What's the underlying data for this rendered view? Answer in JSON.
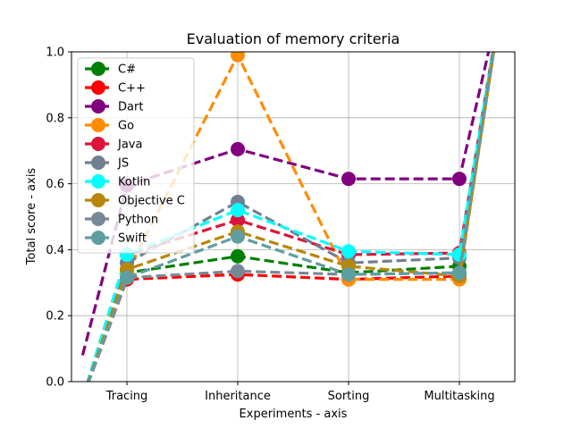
{
  "chart_data": {
    "type": "line",
    "title": "Evaluation of memory criteria",
    "xlabel": "Experiments - axis",
    "ylabel": "Total score - axis",
    "categories": [
      "Tracing",
      "Inheritance",
      "Sorting",
      "Multitasking"
    ],
    "ylim": [
      0,
      1.0
    ],
    "yticks": [
      "0.0",
      "0.2",
      "0.4",
      "0.6",
      "0.8",
      "1.0"
    ],
    "grid": true,
    "legend_position": "top-left",
    "line_style": "dashed",
    "marker": "circle",
    "series": [
      {
        "name": "C#",
        "color": "#008000",
        "values": [
          0.33,
          0.38,
          0.33,
          0.35
        ],
        "left_edge": -0.05,
        "right_edge": 1.2
      },
      {
        "name": "C++",
        "color": "#ff0000",
        "values": [
          0.31,
          0.325,
          0.31,
          0.32
        ],
        "left_edge": -0.05,
        "right_edge": 1.2
      },
      {
        "name": "Dart",
        "color": "#800080",
        "values": [
          0.595,
          0.705,
          0.615,
          0.615
        ],
        "left_edge": 0.08,
        "right_edge": 1.2
      },
      {
        "name": "Go",
        "color": "#ff8c00",
        "values": [
          0.33,
          0.99,
          0.31,
          0.31
        ],
        "left_edge": -0.05,
        "right_edge": 1.2
      },
      {
        "name": "Java",
        "color": "#dc143c",
        "values": [
          0.385,
          0.49,
          0.385,
          0.39
        ],
        "left_edge": -0.05,
        "right_edge": 1.2
      },
      {
        "name": "JS",
        "color": "#708090",
        "values": [
          0.36,
          0.545,
          0.36,
          0.375
        ],
        "left_edge": -0.05,
        "right_edge": 1.2
      },
      {
        "name": "Kotlin",
        "color": "#00ffff",
        "values": [
          0.385,
          0.52,
          0.395,
          0.385
        ],
        "left_edge": -0.05,
        "right_edge": 1.2
      },
      {
        "name": "Objective C",
        "color": "#b8860b",
        "values": [
          0.34,
          0.455,
          0.35,
          0.32
        ],
        "left_edge": -0.05,
        "right_edge": 1.2
      },
      {
        "name": "Python",
        "color": "#778899",
        "values": [
          0.315,
          0.335,
          0.325,
          0.33
        ],
        "left_edge": -0.05,
        "right_edge": 1.2
      },
      {
        "name": "Swift",
        "color": "#5f9ea0",
        "values": [
          0.315,
          0.44,
          0.325,
          0.33
        ],
        "left_edge": -0.05,
        "right_edge": 1.2
      }
    ]
  }
}
